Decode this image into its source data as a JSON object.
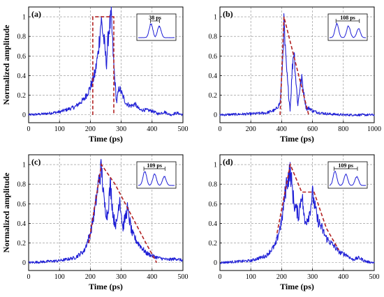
{
  "chart_data": [
    {
      "type": "line",
      "panel_label": "(a)",
      "xlabel": "Time (ps)",
      "ylabel": "Normalized amplitude",
      "xlim": [
        0,
        500
      ],
      "ylim": [
        -0.08,
        1.1
      ],
      "xticks": [
        "0",
        "100",
        "200",
        "300",
        "400",
        "500"
      ],
      "yticks": [
        "0",
        "0.2",
        "0.4",
        "0.6",
        "0.8",
        "1"
      ],
      "grid": true,
      "series": [
        {
          "color": "#1f1fd6",
          "style": "solid",
          "points": [
            [
              0,
              0.0
            ],
            [
              50,
              0.01
            ],
            [
              100,
              0.03
            ],
            [
              150,
              0.08
            ],
            [
              180,
              0.16
            ],
            [
              200,
              0.28
            ],
            [
              215,
              0.42
            ],
            [
              225,
              0.62
            ],
            [
              235,
              0.97
            ],
            [
              245,
              0.74
            ],
            [
              252,
              0.52
            ],
            [
              260,
              0.88
            ],
            [
              268,
              0.98
            ],
            [
              276,
              0.5
            ],
            [
              285,
              0.12
            ],
            [
              293,
              0.28
            ],
            [
              300,
              0.23
            ],
            [
              315,
              0.12
            ],
            [
              330,
              0.09
            ],
            [
              345,
              0.11
            ],
            [
              360,
              0.05
            ],
            [
              380,
              0.05
            ],
            [
              400,
              0.04
            ],
            [
              420,
              0.01
            ],
            [
              440,
              0.03
            ],
            [
              460,
              0.0
            ],
            [
              480,
              0.02
            ],
            [
              500,
              0.0
            ]
          ]
        },
        {
          "color": "#b22222",
          "style": "dashed",
          "points": [
            [
              208,
              0.0
            ],
            [
              208,
              1.0
            ],
            [
              276,
              1.0
            ],
            [
              276,
              0.0
            ]
          ]
        }
      ],
      "inset": {
        "label": "38 ps",
        "peaks": [
          0.35,
          0.58
        ]
      }
    },
    {
      "type": "line",
      "panel_label": "(b)",
      "xlabel": "Time (ps)",
      "ylabel": "",
      "xlim": [
        0,
        1000
      ],
      "ylim": [
        -0.08,
        1.1
      ],
      "xticks": [
        "0",
        "200",
        "400",
        "600",
        "800",
        "1000"
      ],
      "yticks": [
        "0",
        "0.2",
        "0.4",
        "0.6",
        "0.8",
        "1"
      ],
      "grid": true,
      "series": [
        {
          "color": "#1f1fd6",
          "style": "solid",
          "points": [
            [
              0,
              0.0
            ],
            [
              200,
              0.01
            ],
            [
              300,
              0.02
            ],
            [
              360,
              0.05
            ],
            [
              390,
              0.12
            ],
            [
              405,
              0.5
            ],
            [
              415,
              0.95
            ],
            [
              425,
              0.6
            ],
            [
              440,
              0.3
            ],
            [
              455,
              0.05
            ],
            [
              470,
              0.5
            ],
            [
              480,
              0.68
            ],
            [
              490,
              0.4
            ],
            [
              505,
              0.1
            ],
            [
              520,
              0.3
            ],
            [
              532,
              0.37
            ],
            [
              545,
              0.2
            ],
            [
              560,
              0.06
            ],
            [
              580,
              0.07
            ],
            [
              600,
              0.04
            ],
            [
              650,
              0.02
            ],
            [
              700,
              0.01
            ],
            [
              800,
              0.0
            ],
            [
              1000,
              0.0
            ]
          ]
        },
        {
          "color": "#b22222",
          "style": "dashed",
          "points": [
            [
              390,
              0.0
            ],
            [
              415,
              1.0
            ],
            [
              575,
              0.0
            ]
          ]
        }
      ],
      "inset": {
        "label": "108 ps",
        "peaks": [
          0.2,
          0.52,
          0.8
        ]
      }
    },
    {
      "type": "line",
      "panel_label": "(c)",
      "xlabel": "Time (ps)",
      "ylabel": "Normalized amplitude",
      "xlim": [
        0,
        500
      ],
      "ylim": [
        -0.08,
        1.1
      ],
      "xticks": [
        "0",
        "100",
        "200",
        "300",
        "400",
        "500"
      ],
      "yticks": [
        "0",
        "0.2",
        "0.4",
        "0.6",
        "0.8",
        "1"
      ],
      "grid": true,
      "series": [
        {
          "color": "#1f1fd6",
          "style": "solid",
          "points": [
            [
              0,
              0.0
            ],
            [
              50,
              0.01
            ],
            [
              100,
              0.02
            ],
            [
              150,
              0.05
            ],
            [
              180,
              0.12
            ],
            [
              200,
              0.3
            ],
            [
              215,
              0.55
            ],
            [
              228,
              0.85
            ],
            [
              236,
              0.97
            ],
            [
              245,
              0.6
            ],
            [
              255,
              0.48
            ],
            [
              265,
              0.8
            ],
            [
              275,
              0.45
            ],
            [
              285,
              0.38
            ],
            [
              295,
              0.68
            ],
            [
              305,
              0.35
            ],
            [
              320,
              0.55
            ],
            [
              335,
              0.3
            ],
            [
              350,
              0.22
            ],
            [
              365,
              0.16
            ],
            [
              380,
              0.1
            ],
            [
              400,
              0.07
            ],
            [
              420,
              0.05
            ],
            [
              450,
              0.03
            ],
            [
              480,
              0.04
            ],
            [
              500,
              0.02
            ]
          ]
        },
        {
          "color": "#b22222",
          "style": "dashed",
          "points": [
            [
              195,
              0.2
            ],
            [
              236,
              1.0
            ],
            [
              280,
              0.8
            ],
            [
              330,
              0.5
            ],
            [
              380,
              0.2
            ],
            [
              415,
              0.0
            ]
          ]
        }
      ],
      "inset": {
        "label": "109 ps",
        "peaks": [
          0.18,
          0.45,
          0.72
        ]
      }
    },
    {
      "type": "line",
      "panel_label": "(d)",
      "xlabel": "Time (ps)",
      "ylabel": "",
      "xlim": [
        0,
        500
      ],
      "ylim": [
        -0.08,
        1.1
      ],
      "xticks": [
        "0",
        "100",
        "200",
        "300",
        "400",
        "500"
      ],
      "yticks": [
        "0",
        "0.2",
        "0.4",
        "0.6",
        "0.8",
        "1"
      ],
      "grid": true,
      "series": [
        {
          "color": "#1f1fd6",
          "style": "solid",
          "points": [
            [
              0,
              0.0
            ],
            [
              50,
              0.01
            ],
            [
              100,
              0.02
            ],
            [
              150,
              0.07
            ],
            [
              180,
              0.18
            ],
            [
              200,
              0.42
            ],
            [
              215,
              0.8
            ],
            [
              228,
              0.94
            ],
            [
              240,
              0.6
            ],
            [
              255,
              0.48
            ],
            [
              265,
              0.72
            ],
            [
              275,
              0.4
            ],
            [
              290,
              0.5
            ],
            [
              300,
              0.7
            ],
            [
              315,
              0.45
            ],
            [
              330,
              0.35
            ],
            [
              345,
              0.25
            ],
            [
              360,
              0.2
            ],
            [
              375,
              0.15
            ],
            [
              390,
              0.1
            ],
            [
              410,
              0.08
            ],
            [
              430,
              0.03
            ],
            [
              450,
              0.05
            ],
            [
              475,
              0.01
            ],
            [
              500,
              0.0
            ]
          ]
        },
        {
          "color": "#b22222",
          "style": "dashed",
          "points": [
            [
              185,
              0.3
            ],
            [
              228,
              1.0
            ],
            [
              265,
              0.72
            ],
            [
              305,
              0.72
            ],
            [
              345,
              0.35
            ],
            [
              385,
              0.13
            ]
          ]
        }
      ],
      "inset": {
        "label": "109 ps",
        "peaks": [
          0.15,
          0.45,
          0.75
        ]
      }
    }
  ]
}
